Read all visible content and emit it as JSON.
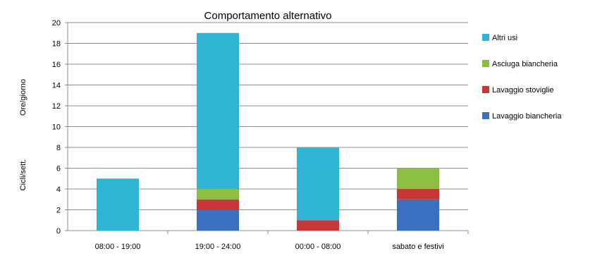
{
  "chart_data": {
    "type": "bar",
    "stacked": true,
    "title": "Comportamento alternativo",
    "ylabel_primary": "Ore/giorno",
    "ylabel_secondary": "Cicli/sett.",
    "ylim": [
      0,
      20
    ],
    "yticks": [
      0,
      2,
      4,
      6,
      8,
      10,
      12,
      14,
      16,
      18,
      20
    ],
    "grid": true,
    "legend_position": "right",
    "categories": [
      "08:00 - 19:00",
      "19:00 - 24:00",
      "00:00 - 08:00",
      "sabato e festivi"
    ],
    "series": [
      {
        "name": "Lavaggio biancheria",
        "color": "#3b6fc0",
        "values": [
          0,
          2,
          0,
          3
        ]
      },
      {
        "name": "Lavaggio stoviglie",
        "color": "#c83737",
        "values": [
          0,
          1,
          1,
          1
        ]
      },
      {
        "name": "Asciuga biancheria",
        "color": "#8cbf3f",
        "values": [
          0,
          1,
          0,
          2
        ]
      },
      {
        "name": "Altri usi",
        "color": "#30b4d6",
        "values": [
          5,
          15,
          7,
          0
        ]
      }
    ]
  }
}
